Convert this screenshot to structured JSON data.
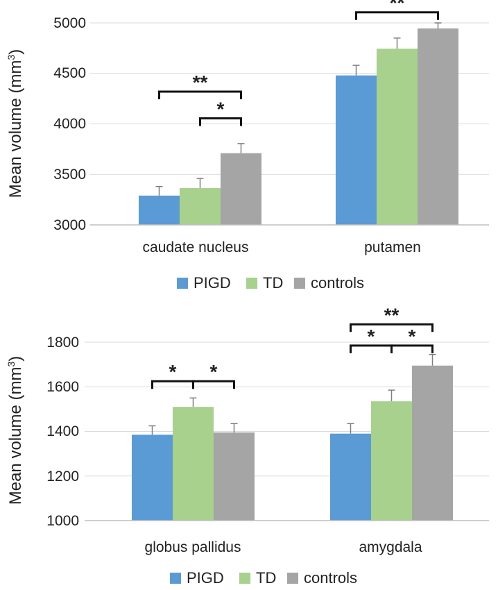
{
  "chart_data": [
    {
      "type": "bar",
      "categories": [
        "caudate nucleus",
        "putamen"
      ],
      "series": [
        {
          "name": "PIGD",
          "values": [
            3290,
            4480
          ],
          "errors": [
            90,
            100
          ],
          "color": "#5b9bd5"
        },
        {
          "name": "TD",
          "values": [
            3365,
            4745
          ],
          "errors": [
            95,
            105
          ],
          "color": "#a9d18e"
        },
        {
          "name": "controls",
          "values": [
            3710,
            4945
          ],
          "errors": [
            95,
            55
          ],
          "color": "#a5a5a5"
        }
      ],
      "ylabel": "Mean volume (mm",
      "ylabel_sup": "3",
      "ylabel_close": ")",
      "yticks": [
        "3000",
        "3500",
        "4000",
        "4500",
        "5000"
      ],
      "ylim": [
        3000,
        5000
      ],
      "legend": "bottom",
      "significance": [
        {
          "category": 0,
          "from": "PIGD",
          "to": "controls",
          "label": "**",
          "level": 4320
        },
        {
          "category": 0,
          "from": "TD",
          "to": "controls",
          "label": "*",
          "level": 4055
        },
        {
          "category": 1,
          "from": "PIGD",
          "to": "controls",
          "label": "**",
          "level": 5105
        }
      ]
    },
    {
      "type": "bar",
      "categories": [
        "globus pallidus",
        "amygdala"
      ],
      "series": [
        {
          "name": "PIGD",
          "values": [
            1385,
            1390
          ],
          "errors": [
            40,
            45
          ],
          "color": "#5b9bd5"
        },
        {
          "name": "TD",
          "values": [
            1510,
            1535
          ],
          "errors": [
            40,
            50
          ],
          "color": "#a9d18e"
        },
        {
          "name": "controls",
          "values": [
            1395,
            1695
          ],
          "errors": [
            40,
            50
          ],
          "color": "#a5a5a5"
        }
      ],
      "ylabel": "Mean volume (mm",
      "ylabel_sup": "3",
      "ylabel_close": ")",
      "yticks": [
        "1000",
        "1200",
        "1400",
        "1600",
        "1800"
      ],
      "ylim": [
        1000,
        1800
      ],
      "legend": "bottom",
      "significance": [
        {
          "category": 0,
          "from": "PIGD",
          "to": "TD",
          "label": "*",
          "level": 1625
        },
        {
          "category": 0,
          "from": "TD",
          "to": "controls",
          "label": "*",
          "level": 1625
        },
        {
          "category": 1,
          "from": "PIGD",
          "to": "TD",
          "label": "*",
          "level": 1785
        },
        {
          "category": 1,
          "from": "TD",
          "to": "controls",
          "label": "*",
          "level": 1785
        },
        {
          "category": 1,
          "from": "PIGD",
          "to": "controls",
          "label": "**",
          "level": 1880
        }
      ]
    }
  ]
}
